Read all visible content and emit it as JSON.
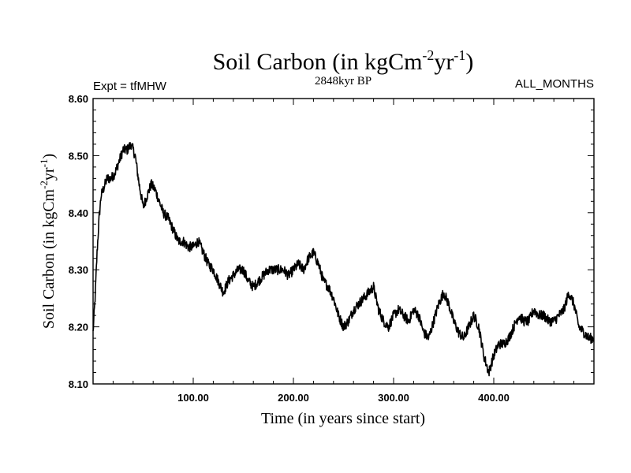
{
  "chart_data": {
    "type": "line",
    "title": {
      "main": "Soil Carbon (in kgCm",
      "sup1": "-2",
      "mid": "yr",
      "sup2": "-1",
      "end": ")"
    },
    "left_label": "Expt = tfMHW",
    "center_label": "2848kyr BP",
    "right_label": "ALL_MONTHS",
    "xlabel": "Time (in years since start)",
    "ylabel": {
      "main": "Soil Carbon (in kgCm",
      "sup1": "-2",
      "mid": "yr",
      "sup2": "-1",
      "end": ")"
    },
    "xlim": [
      0,
      500
    ],
    "ylim": [
      8.1,
      8.6
    ],
    "x_ticks": [
      {
        "value": 100,
        "label": "100.00"
      },
      {
        "value": 200,
        "label": "200.00"
      },
      {
        "value": 300,
        "label": "300.00"
      },
      {
        "value": 400,
        "label": "400.00"
      }
    ],
    "y_ticks": [
      {
        "value": 8.1,
        "label": "8.10"
      },
      {
        "value": 8.2,
        "label": "8.20"
      },
      {
        "value": 8.3,
        "label": "8.30"
      },
      {
        "value": 8.4,
        "label": "8.40"
      },
      {
        "value": 8.5,
        "label": "8.50"
      },
      {
        "value": 8.6,
        "label": "8.60"
      }
    ],
    "series": [
      {
        "name": "Soil Carbon",
        "color": "#000000",
        "noise": 0.009,
        "x": [
          0,
          2,
          4,
          6,
          8,
          10,
          14,
          18,
          22,
          26,
          30,
          34,
          38,
          42,
          46,
          50,
          54,
          58,
          62,
          66,
          70,
          75,
          80,
          85,
          90,
          95,
          100,
          105,
          110,
          115,
          120,
          125,
          130,
          135,
          140,
          145,
          150,
          155,
          160,
          165,
          170,
          175,
          180,
          185,
          190,
          195,
          200,
          205,
          210,
          215,
          220,
          225,
          230,
          235,
          240,
          245,
          250,
          255,
          260,
          265,
          270,
          275,
          280,
          285,
          290,
          295,
          300,
          305,
          310,
          315,
          320,
          325,
          330,
          335,
          340,
          345,
          350,
          355,
          360,
          365,
          370,
          375,
          380,
          385,
          390,
          395,
          400,
          405,
          410,
          415,
          420,
          425,
          430,
          435,
          440,
          445,
          450,
          455,
          460,
          465,
          470,
          475,
          480,
          485,
          490,
          495,
          500
        ],
        "y": [
          8.19,
          8.25,
          8.33,
          8.39,
          8.43,
          8.44,
          8.46,
          8.46,
          8.47,
          8.49,
          8.51,
          8.51,
          8.52,
          8.5,
          8.45,
          8.41,
          8.43,
          8.45,
          8.44,
          8.42,
          8.4,
          8.39,
          8.37,
          8.35,
          8.35,
          8.34,
          8.34,
          8.35,
          8.33,
          8.31,
          8.3,
          8.28,
          8.26,
          8.28,
          8.29,
          8.3,
          8.3,
          8.28,
          8.27,
          8.28,
          8.29,
          8.3,
          8.3,
          8.3,
          8.3,
          8.29,
          8.3,
          8.31,
          8.3,
          8.32,
          8.33,
          8.31,
          8.28,
          8.27,
          8.25,
          8.22,
          8.2,
          8.21,
          8.23,
          8.24,
          8.25,
          8.26,
          8.27,
          8.23,
          8.21,
          8.2,
          8.22,
          8.23,
          8.22,
          8.21,
          8.23,
          8.22,
          8.19,
          8.18,
          8.21,
          8.24,
          8.26,
          8.24,
          8.21,
          8.19,
          8.18,
          8.2,
          8.22,
          8.2,
          8.15,
          8.12,
          8.15,
          8.17,
          8.17,
          8.18,
          8.2,
          8.22,
          8.21,
          8.21,
          8.23,
          8.22,
          8.22,
          8.21,
          8.21,
          8.22,
          8.23,
          8.26,
          8.24,
          8.2,
          8.19,
          8.18,
          8.18
        ]
      }
    ]
  }
}
